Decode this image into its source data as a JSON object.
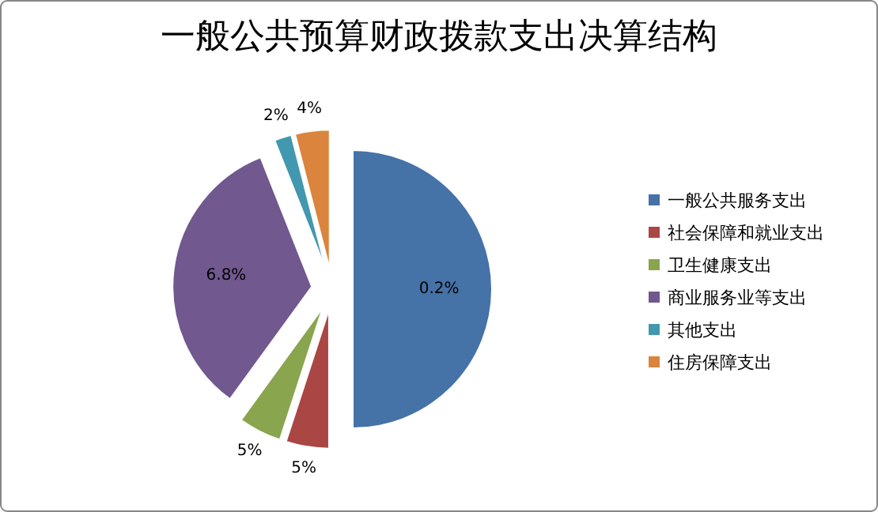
{
  "chart_data": {
    "type": "pie",
    "title": "一般公共预算财政拨款支出决算结构",
    "categories": [
      "一般公共服务支出",
      "社会保障和就业支出",
      "卫生健康支出",
      "商业服务业等支出",
      "其他支出",
      "住房保障支出"
    ],
    "values": [
      50,
      5,
      5,
      34,
      2,
      4
    ],
    "annotations": [
      "0.2%",
      "5%",
      "5%",
      "6.8%",
      "2%",
      "4%"
    ],
    "colors": [
      "#4572a7",
      "#aa4643",
      "#89a54e",
      "#71588f",
      "#4198af",
      "#db843d"
    ],
    "legend": "right"
  }
}
